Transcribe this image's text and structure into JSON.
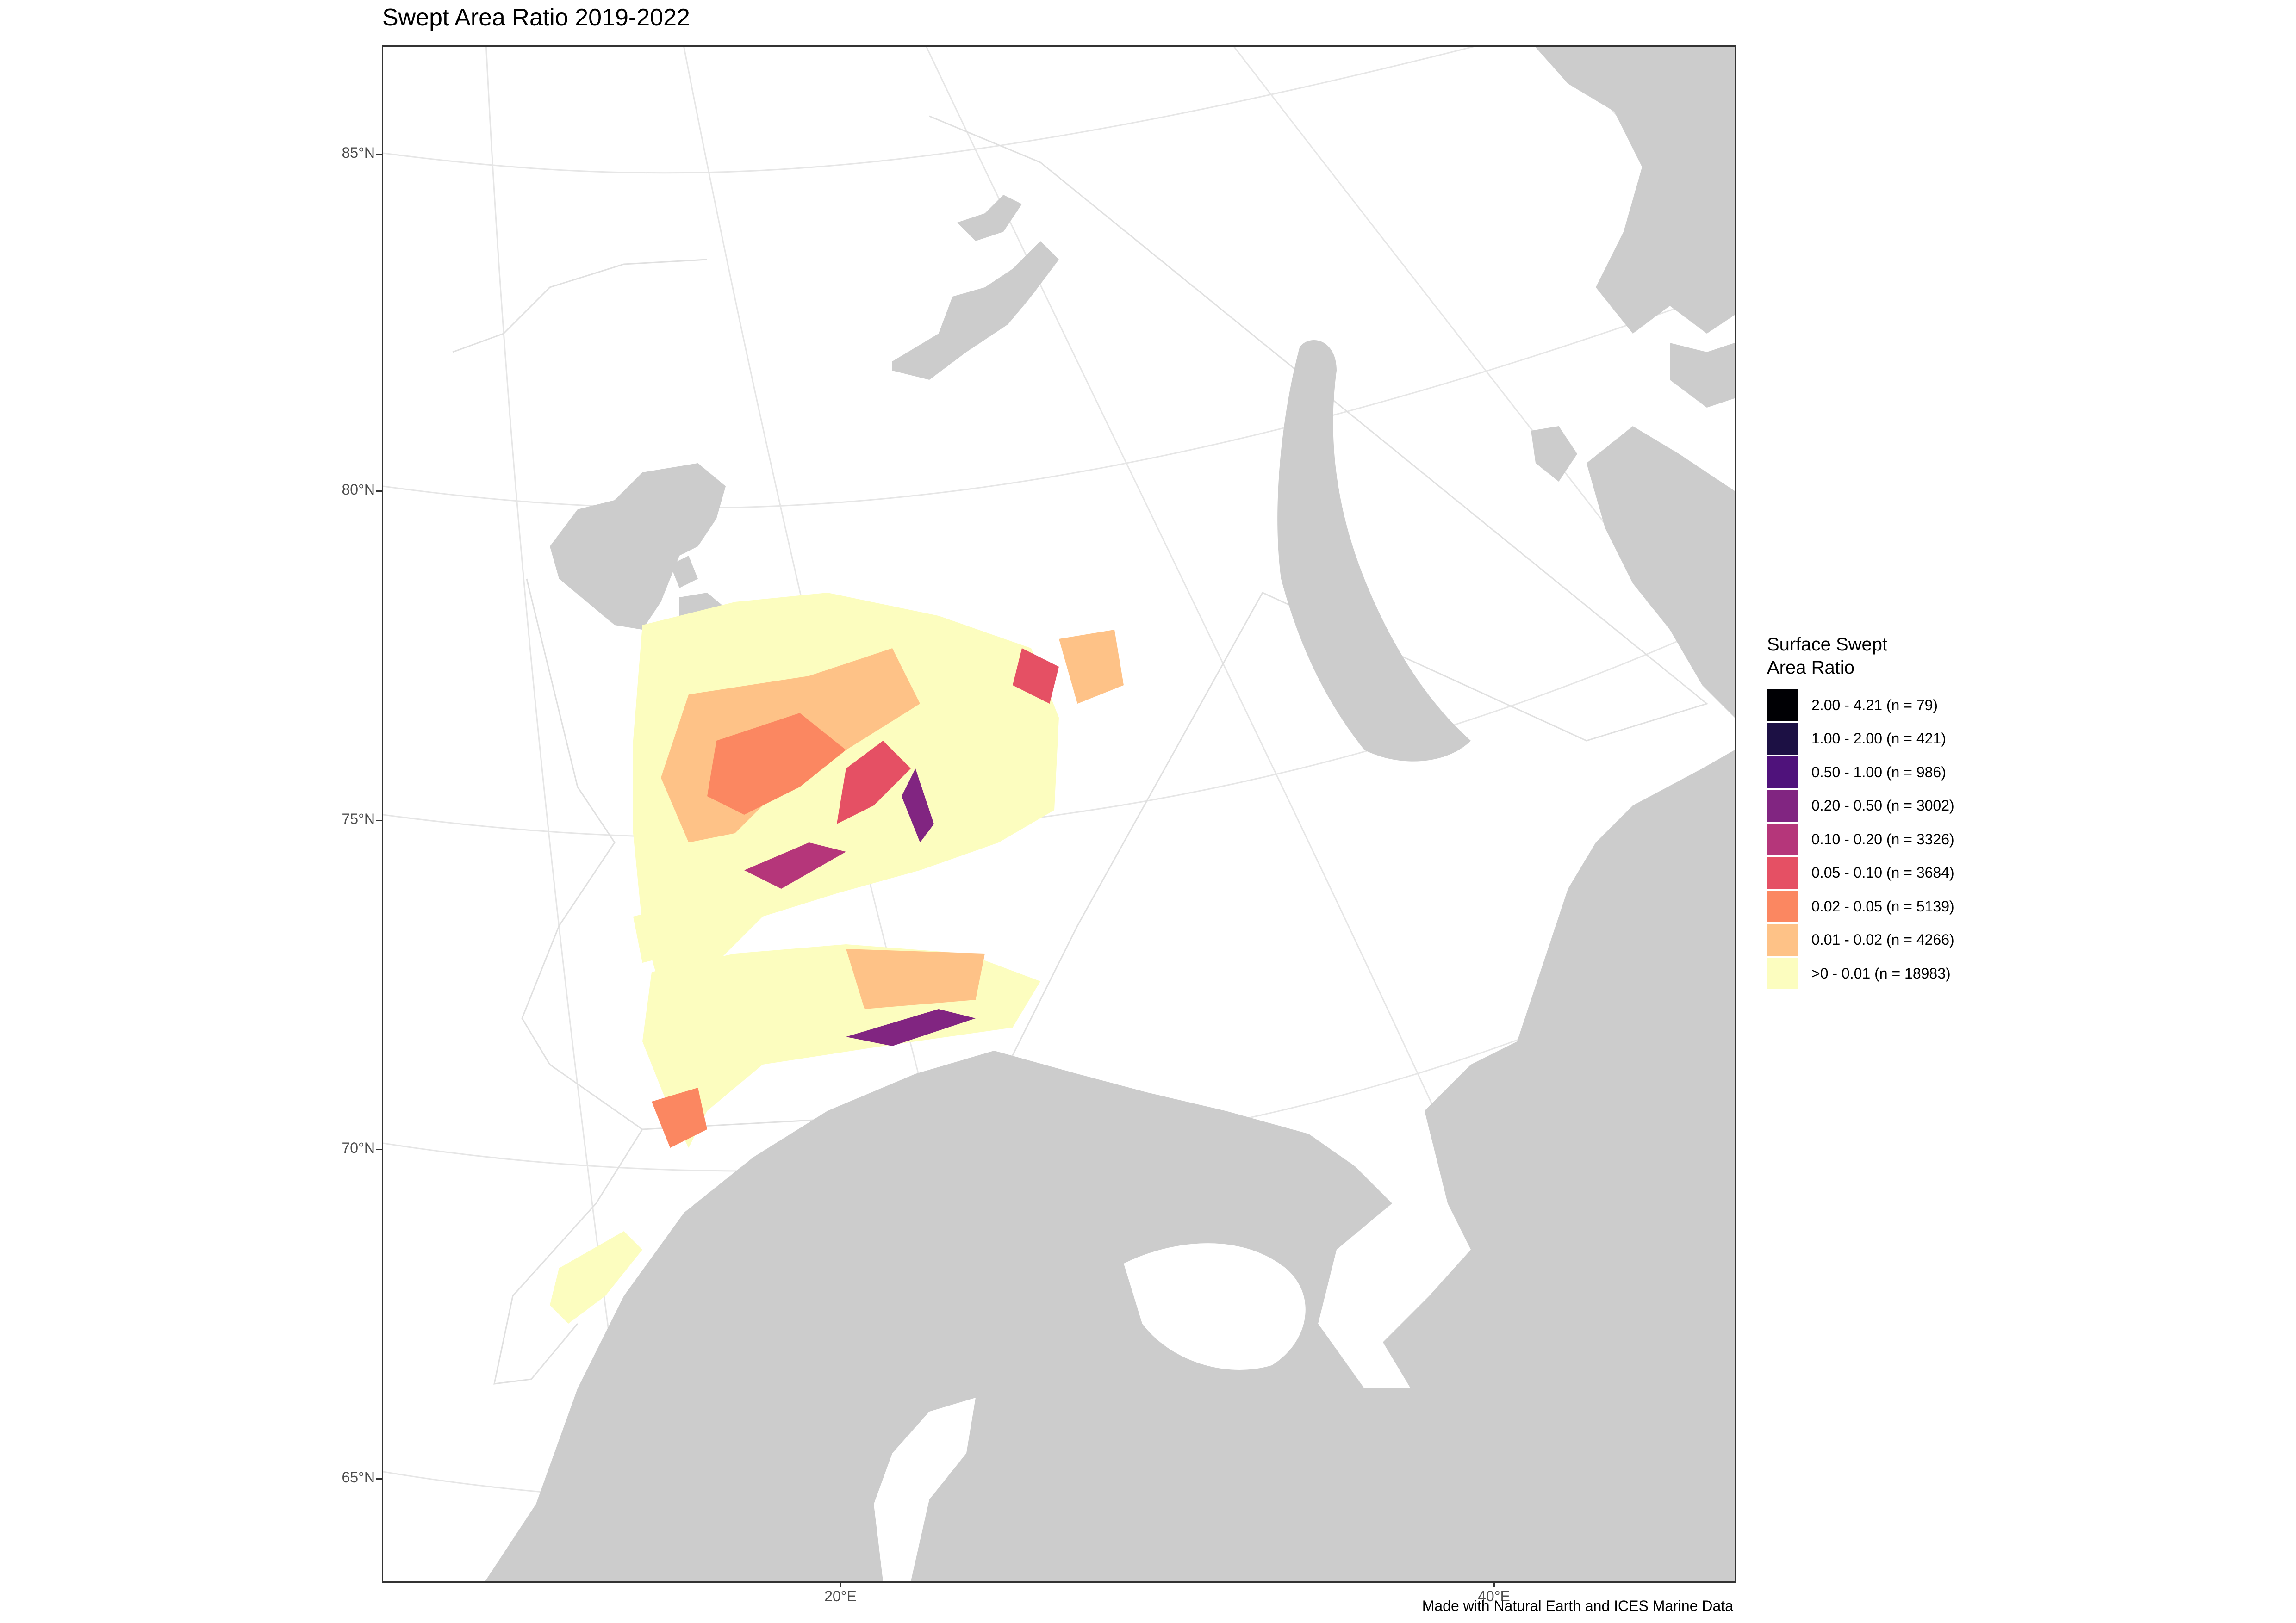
{
  "title": "Swept Area Ratio 2019-2022",
  "caption": "Made with Natural Earth and ICES Marine Data",
  "axes": {
    "y_ticks": [
      "85°N",
      "80°N",
      "75°N",
      "70°N",
      "65°N"
    ],
    "x_ticks": [
      "20°E",
      "40°E"
    ]
  },
  "colors": {
    "land": "#cccccc",
    "graticule": "#e6e6e6",
    "panel_border": "#333333"
  },
  "legend": {
    "title": "Surface Swept\nArea Ratio",
    "items": [
      {
        "label": "2.00 - 4.21 (n = 79)",
        "color": "#000004"
      },
      {
        "label": "1.00 - 2.00 (n = 421)",
        "color": "#1c1044"
      },
      {
        "label": "0.50 - 1.00 (n = 986)",
        "color": "#4f127b"
      },
      {
        "label": "0.20 - 0.50 (n = 3002)",
        "color": "#812581"
      },
      {
        "label": "0.10 - 0.20 (n = 3326)",
        "color": "#b5367a"
      },
      {
        "label": "0.05 - 0.10 (n = 3684)",
        "color": "#e55064"
      },
      {
        "label": "0.02 - 0.05 (n = 5139)",
        "color": "#fb8761"
      },
      {
        "label": "0.01 - 0.02 (n = 4266)",
        "color": "#fec287"
      },
      {
        "label": ">0 - 0.01 (n = 18983)",
        "color": "#fcfdbf"
      }
    ]
  }
}
